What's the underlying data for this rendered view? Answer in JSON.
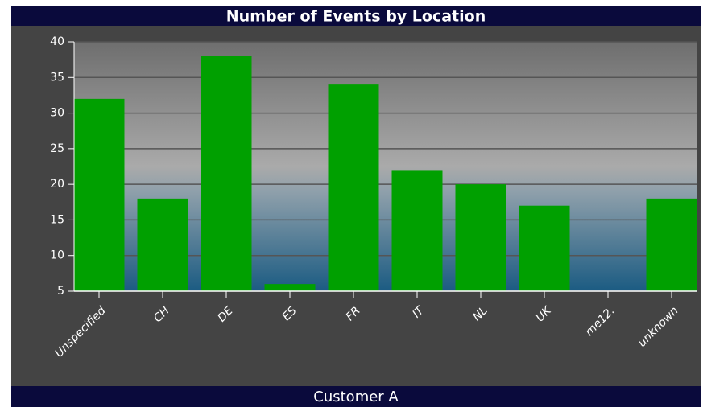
{
  "chart_data": {
    "type": "bar",
    "title": "Number of Events by Location",
    "subtitle": "Customer A",
    "categories": [
      "Unspecified",
      "CH",
      "DE",
      "ES",
      "FR",
      "IT",
      "NL",
      "UK",
      "me12.",
      "unknown"
    ],
    "values": [
      32,
      18,
      38,
      6,
      34,
      22,
      20,
      17,
      5,
      18
    ],
    "color": "#00a000",
    "ylim": [
      5,
      40
    ],
    "yticks": [
      5,
      10,
      15,
      20,
      25,
      30,
      35,
      40
    ],
    "grid": true
  }
}
